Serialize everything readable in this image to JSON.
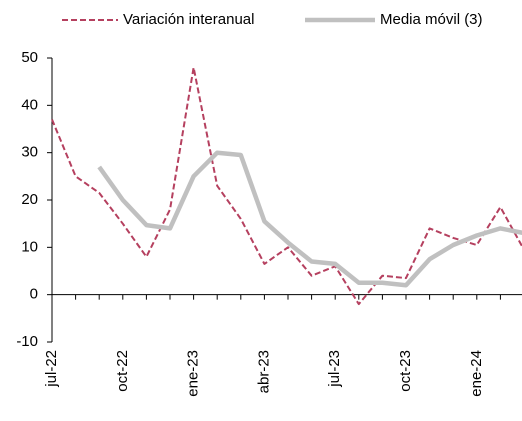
{
  "chart_data": {
    "type": "line",
    "categories": [
      "jul-22",
      null,
      null,
      "oct-22",
      null,
      null,
      "ene-23",
      null,
      null,
      "abr-23",
      null,
      null,
      "jul-23",
      null,
      null,
      "oct-23",
      null,
      null,
      "ene-24",
      null,
      null
    ],
    "series": [
      {
        "name": "Variación interanual",
        "color": "#b5405f",
        "dash": true,
        "values": [
          37,
          25,
          21.5,
          15,
          8,
          18,
          48,
          23,
          16,
          6.5,
          10,
          4,
          6,
          -2,
          4,
          3.5,
          14,
          12,
          10.5,
          18.5,
          9.5
        ]
      },
      {
        "name": "Media móvil (3)",
        "color": "#c0c0c0",
        "dash": false,
        "values": [
          null,
          null,
          27,
          20,
          14.7,
          14,
          25,
          30,
          29.5,
          15.5,
          11,
          7,
          6.5,
          2.5,
          2.5,
          2,
          7.5,
          10.5,
          12.5,
          14,
          13
        ]
      }
    ],
    "ylim": [
      -10,
      50
    ],
    "yticks": [
      -10,
      0,
      10,
      20,
      30,
      40,
      50
    ],
    "grid": false,
    "legend": "top"
  }
}
